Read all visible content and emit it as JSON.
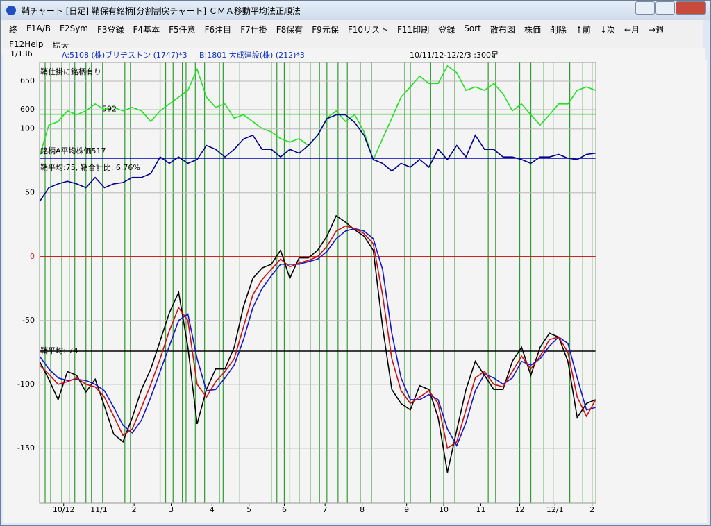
{
  "window": {
    "title": "鞘チャート [日足] 鞘保有銘柄[分割割戻チャート] ＣＭＡ移動平均法正順法",
    "menu": [
      "終",
      "F1A/B",
      "F2Sym",
      "F3登録",
      "F4基本",
      "F5任意",
      "F6注目",
      "F7仕掛",
      "F8保有",
      "F9元保",
      "F10リスト",
      "F11印刷",
      "登録",
      "Sort",
      "散布図",
      "株価",
      "削除",
      "↑前",
      "↓次",
      "←月",
      "→週",
      "F12Help",
      "拡大"
    ]
  },
  "info": {
    "count": "1/136",
    "a": "A:5108 (株)ブリヂストン (1747)*3",
    "b": "B:1801 大成建設(株) (212)*3",
    "range": "10/11/12-12/2/3 :300足"
  },
  "chart_data": [
    {
      "type": "line",
      "xlim": [
        0,
        300
      ],
      "ylim": [
        500,
        683
      ],
      "yticks": [
        650,
        600
      ],
      "grid": true,
      "x": [
        0,
        5,
        10,
        15,
        20,
        25,
        30,
        35,
        40,
        45,
        50,
        55,
        60,
        65,
        70,
        75,
        80,
        85,
        90,
        95,
        100,
        105,
        110,
        115,
        120,
        125,
        130,
        135,
        140,
        145,
        150,
        155,
        160,
        165,
        170,
        175,
        180,
        185,
        190,
        195,
        200,
        205,
        210,
        215,
        220,
        225,
        230,
        235,
        240,
        245,
        250,
        255,
        260,
        265,
        270,
        275,
        280,
        285,
        290,
        295,
        300
      ],
      "series": [
        {
          "color": "#22e022",
          "values": [
            518,
            573,
            579,
            598,
            591,
            598,
            610,
            600,
            604,
            598,
            604,
            598,
            579,
            598,
            610,
            622,
            634,
            671,
            622,
            604,
            610,
            585,
            591,
            579,
            567,
            561,
            549,
            543,
            549,
            537,
            555,
            585,
            598,
            579,
            591,
            561,
            512,
            549,
            585,
            622,
            640,
            659,
            646,
            646,
            677,
            665,
            634,
            640,
            634,
            646,
            628,
            598,
            610,
            591,
            573,
            591,
            610,
            610,
            634,
            640,
            634
          ]
        }
      ],
      "ref_lines": [
        {
          "value": 592,
          "color": "#22c022"
        }
      ]
    },
    {
      "type": "line",
      "xlim": [
        0,
        300
      ],
      "ylim": [
        -193,
        152
      ],
      "yticks": [
        100,
        50,
        0,
        -50,
        -100,
        -150
      ],
      "grid": true,
      "xticks": [
        {
          "value": 13,
          "label": "10/12"
        },
        {
          "value": 32,
          "label": "11/1"
        },
        {
          "value": 51,
          "label": "2"
        },
        {
          "value": 71,
          "label": "3"
        },
        {
          "value": 93,
          "label": "4"
        },
        {
          "value": 113,
          "label": "5"
        },
        {
          "value": 132,
          "label": "6"
        },
        {
          "value": 154,
          "label": "7"
        },
        {
          "value": 174,
          "label": "8"
        },
        {
          "value": 198,
          "label": "9"
        },
        {
          "value": 218,
          "label": "10"
        },
        {
          "value": 238,
          "label": "11"
        },
        {
          "value": 259,
          "label": "12"
        },
        {
          "value": 278,
          "label": "12/1"
        },
        {
          "value": 298,
          "label": "2"
        }
      ],
      "signals": [
        3,
        6,
        12,
        16,
        19,
        25,
        28,
        34,
        46,
        49,
        65,
        68,
        72,
        77,
        79,
        84,
        89,
        97,
        99,
        108,
        125,
        128,
        132,
        135,
        140,
        146,
        151,
        155,
        161,
        166,
        173,
        179,
        197,
        200,
        211,
        218,
        224,
        242,
        246,
        259,
        265,
        272,
        277,
        286,
        293,
        298
      ],
      "x": [
        0,
        5,
        10,
        15,
        20,
        25,
        30,
        35,
        40,
        45,
        50,
        55,
        60,
        65,
        70,
        75,
        80,
        85,
        90,
        95,
        100,
        105,
        110,
        115,
        120,
        125,
        130,
        135,
        140,
        145,
        150,
        155,
        160,
        165,
        170,
        175,
        180,
        185,
        190,
        195,
        200,
        205,
        210,
        215,
        220,
        225,
        230,
        235,
        240,
        245,
        250,
        255,
        260,
        265,
        270,
        275,
        280,
        285,
        290,
        295,
        300
      ],
      "series": [
        {
          "color": "#00008b",
          "values": [
            43,
            54,
            57,
            59,
            57,
            54,
            62,
            54,
            57,
            58,
            62,
            62,
            65,
            78,
            73,
            78,
            73,
            76,
            87,
            84,
            78,
            84,
            92,
            95,
            84,
            84,
            78,
            84,
            81,
            87,
            95,
            108,
            111,
            111,
            105,
            95,
            76,
            73,
            67,
            73,
            70,
            76,
            70,
            84,
            76,
            87,
            78,
            95,
            84,
            84,
            78,
            78,
            76,
            73,
            78,
            78,
            80,
            77,
            76,
            80,
            81
          ]
        },
        {
          "color": "#000000",
          "values": [
            -82,
            -96,
            -112,
            -90,
            -93,
            -106,
            -96,
            -117,
            -139,
            -145,
            -126,
            -104,
            -88,
            -66,
            -44,
            -28,
            -71,
            -131,
            -104,
            -88,
            -88,
            -71,
            -39,
            -17,
            -9,
            -6,
            5,
            -17,
            -1,
            -1,
            5,
            16,
            32,
            27,
            21,
            16,
            5,
            -55,
            -104,
            -115,
            -120,
            -101,
            -104,
            -126,
            -169,
            -136,
            -104,
            -82,
            -93,
            -104,
            -104,
            -82,
            -71,
            -93,
            -71,
            -60,
            -63,
            -82,
            -126,
            -115,
            -112
          ]
        },
        {
          "color": "#1414d2",
          "values": [
            -78,
            -88,
            -95,
            -97,
            -96,
            -97,
            -100,
            -105,
            -118,
            -132,
            -138,
            -128,
            -110,
            -90,
            -70,
            -50,
            -45,
            -80,
            -105,
            -104,
            -95,
            -85,
            -65,
            -40,
            -25,
            -15,
            -6,
            -6,
            -6,
            -4,
            -2,
            4,
            14,
            20,
            22,
            20,
            14,
            -10,
            -60,
            -95,
            -112,
            -112,
            -108,
            -112,
            -135,
            -148,
            -130,
            -105,
            -92,
            -95,
            -100,
            -95,
            -82,
            -85,
            -80,
            -70,
            -63,
            -68,
            -95,
            -120,
            -118
          ]
        },
        {
          "color": "#cc1010",
          "values": [
            -85,
            -92,
            -100,
            -98,
            -95,
            -100,
            -102,
            -110,
            -125,
            -140,
            -135,
            -118,
            -100,
            -80,
            -58,
            -40,
            -50,
            -100,
            -110,
            -98,
            -90,
            -80,
            -55,
            -30,
            -18,
            -10,
            -2,
            -8,
            -5,
            -3,
            0,
            8,
            20,
            24,
            22,
            18,
            10,
            -30,
            -80,
            -105,
            -115,
            -110,
            -105,
            -115,
            -150,
            -145,
            -120,
            -95,
            -90,
            -100,
            -102,
            -90,
            -78,
            -88,
            -78,
            -65,
            -63,
            -75,
            -110,
            -125,
            -112
          ]
        }
      ],
      "ref_lines": [
        {
          "value": 77,
          "color": "#0000c0"
        },
        {
          "value": 0,
          "color": "#d02020"
        },
        {
          "value": -74,
          "color": "#000000"
        }
      ],
      "annotations": [
        "鞘仕掛に銘柄有り",
        "銘柄A平均株価517",
        "鞘平均:75, 鞘合計比: 6.76%",
        "鞘平均:-74"
      ]
    }
  ]
}
